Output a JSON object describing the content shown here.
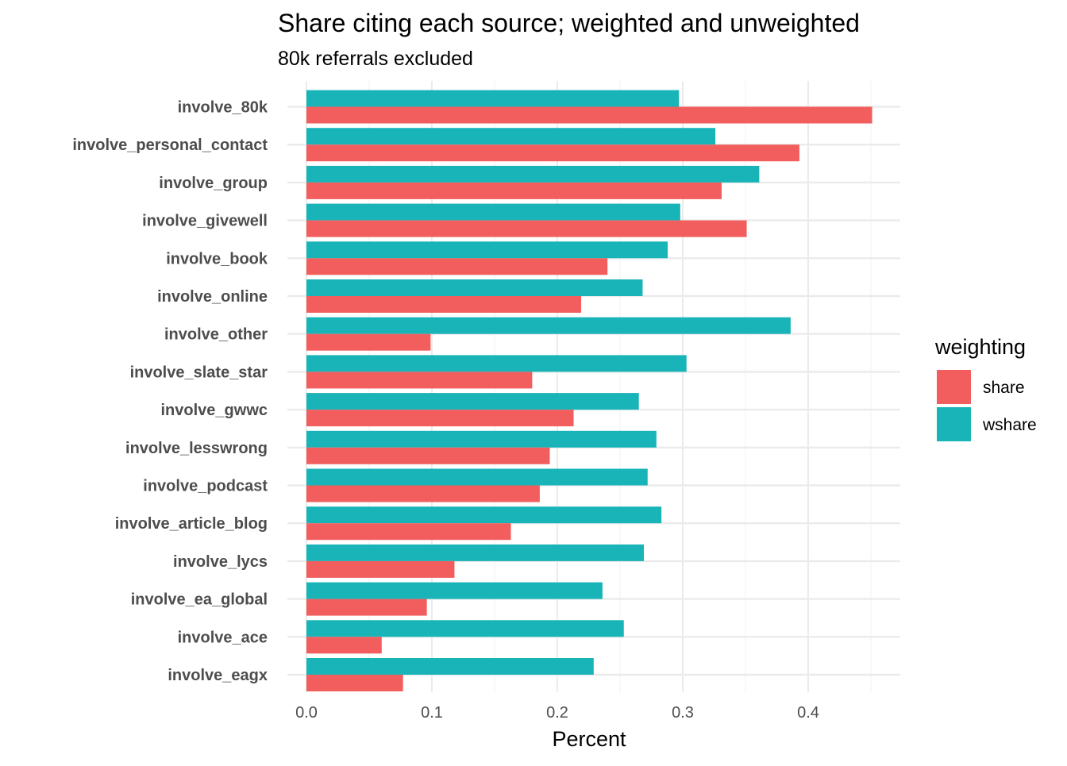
{
  "chart_data": {
    "type": "bar",
    "orientation": "horizontal",
    "title": "Share citing each source; weighted and unweighted",
    "subtitle": "80k referrals excluded",
    "xlabel": "Percent",
    "ylabel": "",
    "xlim": [
      0,
      0.47
    ],
    "xticks": [
      "0.0",
      "0.1",
      "0.2",
      "0.3",
      "0.4"
    ],
    "xtick_values": [
      0,
      0.1,
      0.2,
      0.3,
      0.4
    ],
    "grid": true,
    "legend": {
      "title": "weighting",
      "position": "right"
    },
    "categories": [
      "involve_80k",
      "involve_personal_contact",
      "involve_group",
      "involve_givewell",
      "involve_book",
      "involve_online",
      "involve_other",
      "involve_slate_star",
      "involve_gwwc",
      "involve_lesswrong",
      "involve_podcast",
      "involve_article_blog",
      "involve_lycs",
      "involve_ea_global",
      "involve_ace",
      "involve_eagx"
    ],
    "series": [
      {
        "name": "share",
        "color": "#f25e5e",
        "values": [
          0.451,
          0.393,
          0.331,
          0.351,
          0.24,
          0.219,
          0.099,
          0.18,
          0.213,
          0.194,
          0.186,
          0.163,
          0.118,
          0.096,
          0.06,
          0.077
        ]
      },
      {
        "name": "wshare",
        "color": "#19b4b8",
        "values": [
          0.297,
          0.326,
          0.361,
          0.298,
          0.288,
          0.268,
          0.386,
          0.303,
          0.265,
          0.279,
          0.272,
          0.283,
          0.269,
          0.236,
          0.253,
          0.229
        ]
      }
    ]
  }
}
